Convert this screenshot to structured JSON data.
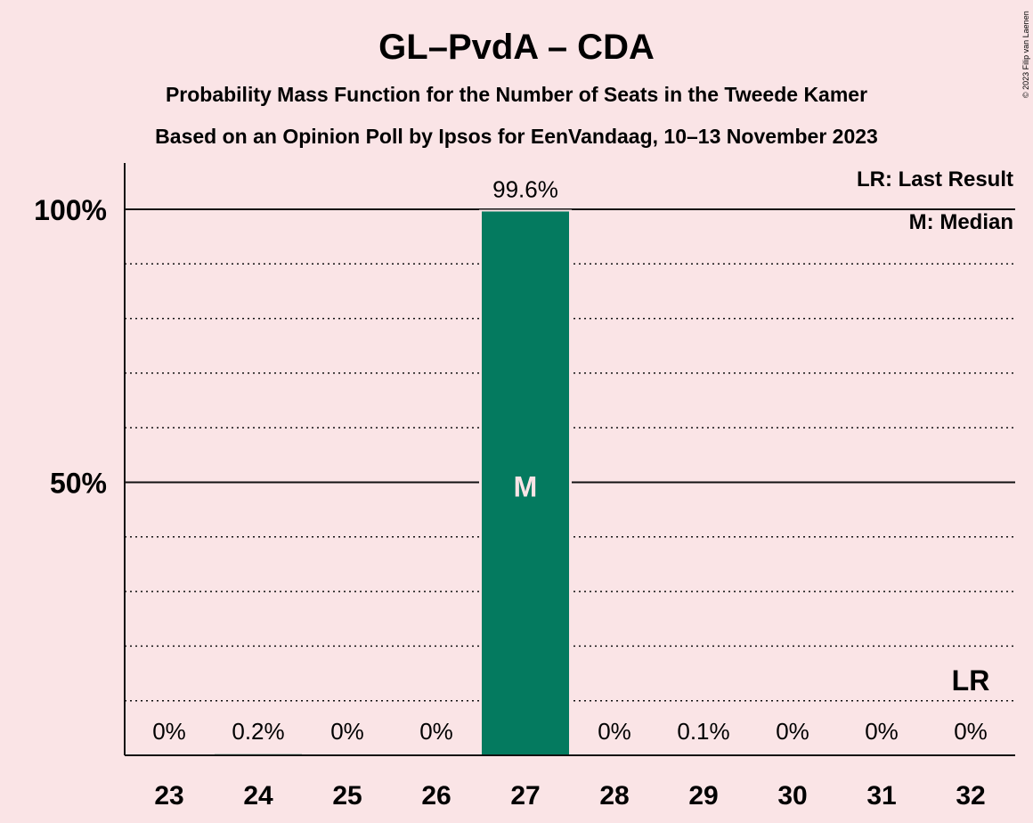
{
  "title": "GL–PvdA – CDA",
  "subtitle": "Probability Mass Function for the Number of Seats in the Tweede Kamer",
  "subtitle2": "Based on an Opinion Poll by Ipsos for EenVandaag, 10–13 November 2023",
  "copyright": "© 2023 Filip van Laenen",
  "legend": {
    "last_result": "LR: Last Result",
    "median": "M: Median"
  },
  "colors": {
    "background": "#fae4e6",
    "bar": "#047a5f"
  },
  "chart_data": {
    "type": "bar",
    "categories": [
      "23",
      "24",
      "25",
      "26",
      "27",
      "28",
      "29",
      "30",
      "31",
      "32"
    ],
    "values": [
      0,
      0.2,
      0,
      0,
      99.6,
      0,
      0.1,
      0,
      0,
      0
    ],
    "labels": [
      "0%",
      "0.2%",
      "0%",
      "0%",
      "99.6%",
      "0%",
      "0.1%",
      "0%",
      "0%",
      "0%"
    ],
    "ylim": [
      0,
      100
    ],
    "yticks": [
      {
        "value": 50,
        "label": "50%"
      },
      {
        "value": 100,
        "label": "100%"
      }
    ],
    "minor_gridlines": [
      10,
      20,
      30,
      40,
      60,
      70,
      80,
      90
    ],
    "median": {
      "category": "27",
      "label": "M"
    },
    "last_result": {
      "category": "32",
      "label": "LR"
    }
  }
}
